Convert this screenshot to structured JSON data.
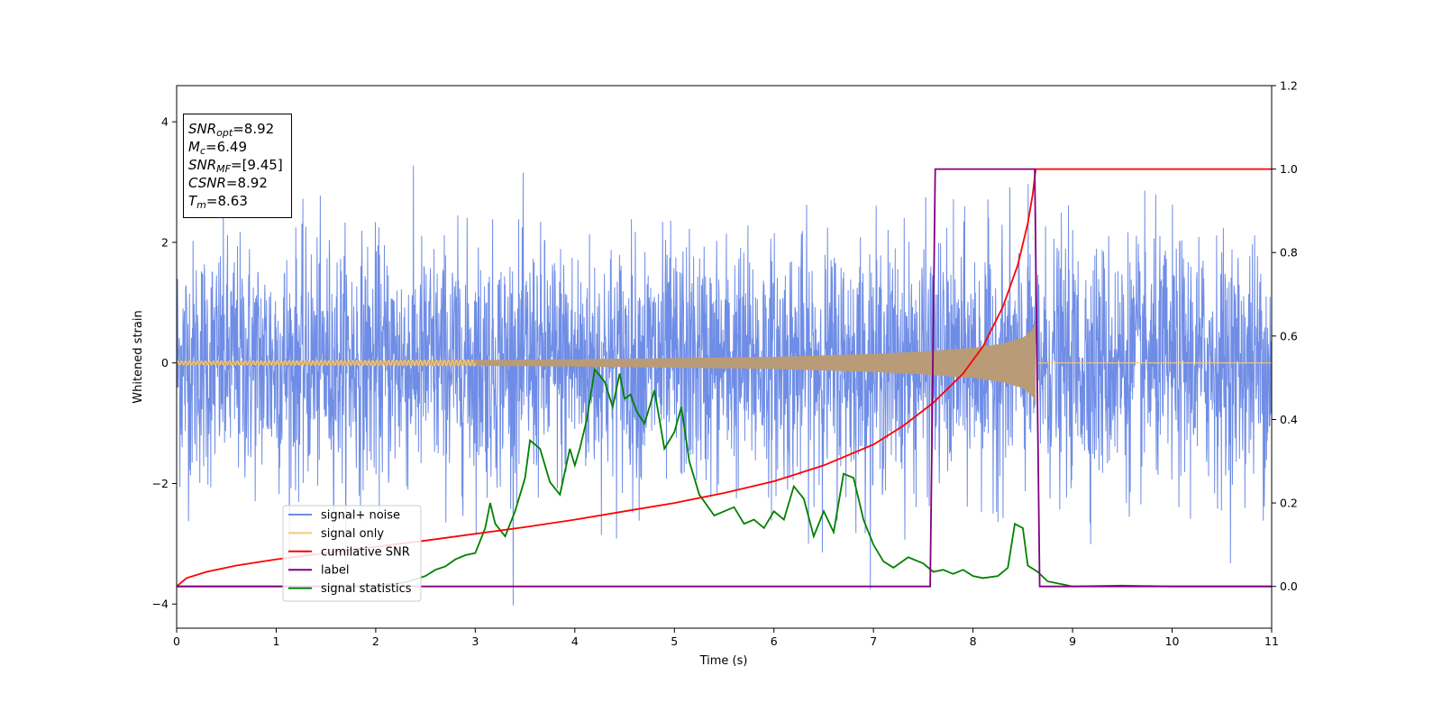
{
  "chart_data": {
    "type": "line",
    "xlabel": "Time (s)",
    "ylabel": "Whitened strain",
    "xlim": [
      0,
      11
    ],
    "ylim": [
      -4.4,
      4.6
    ],
    "y2lim": [
      -0.1,
      1.2
    ],
    "x_ticks": [
      "0",
      "1",
      "2",
      "3",
      "4",
      "5",
      "6",
      "7",
      "8",
      "9",
      "10",
      "11"
    ],
    "y_ticks": [
      "−4",
      "−2",
      "0",
      "2",
      "4"
    ],
    "y2_ticks": [
      "0.0",
      "0.2",
      "0.4",
      "0.6",
      "0.8",
      "1.0",
      "1.2"
    ],
    "legend_position": "lower-left",
    "colors": {
      "signal_noise": "#6f8de6",
      "signal_only": "#f5c97a",
      "overlap": "#b99b78",
      "cumulative_snr": "#ff0000",
      "label": "#800080",
      "signal_statistics": "#008000"
    },
    "annotation": {
      "snr_opt": {
        "symbol": "SNR",
        "sub": "opt",
        "value": "=8.92"
      },
      "mc": {
        "symbol": "M",
        "sub": "c",
        "value": "=6.49"
      },
      "snr_mf": {
        "symbol": "SNR",
        "sub": "MF",
        "value": "=[9.45]"
      },
      "csnr": {
        "symbol": "CSNR",
        "value": "=8.92"
      },
      "tm": {
        "symbol": "T",
        "sub": "m",
        "value": "=8.63"
      }
    },
    "series": [
      {
        "name": "signal+ noise",
        "axis": "left",
        "style": "white noise, std ≈ 1.0, peaks to ≈ ±4.1, spanning t = 0–11 s"
      },
      {
        "name": "signal only",
        "axis": "left",
        "style": "chirp, amplitude rising from ≈ 0.03 to ≈ 0.7, ends at t = 8.63 s, zero afterwards",
        "envelope": [
          [
            0,
            0.03
          ],
          [
            2,
            0.04
          ],
          [
            4,
            0.06
          ],
          [
            6,
            0.1
          ],
          [
            7,
            0.15
          ],
          [
            7.5,
            0.19
          ],
          [
            8,
            0.25
          ],
          [
            8.3,
            0.32
          ],
          [
            8.5,
            0.42
          ],
          [
            8.6,
            0.55
          ],
          [
            8.63,
            0.7
          ]
        ]
      },
      {
        "name": "cumilative SNR",
        "axis": "right",
        "x": [
          0,
          0.1,
          0.3,
          0.6,
          1,
          1.5,
          2,
          2.5,
          3,
          3.5,
          4,
          4.5,
          5,
          5.5,
          6,
          6.5,
          7,
          7.3,
          7.6,
          7.9,
          8.1,
          8.3,
          8.45,
          8.55,
          8.6,
          8.63,
          8.7,
          11
        ],
        "y": [
          0,
          0.02,
          0.035,
          0.05,
          0.065,
          0.08,
          0.095,
          0.11,
          0.126,
          0.142,
          0.16,
          0.18,
          0.2,
          0.224,
          0.252,
          0.29,
          0.34,
          0.385,
          0.44,
          0.51,
          0.575,
          0.67,
          0.77,
          0.87,
          0.94,
          1.0,
          1.0,
          1.0
        ]
      },
      {
        "name": "label",
        "axis": "right",
        "x": [
          0,
          7.57,
          7.62,
          8.62,
          8.67,
          11
        ],
        "y": [
          0,
          0,
          1,
          1,
          0,
          0
        ]
      },
      {
        "name": "signal statistics",
        "axis": "right",
        "x": [
          0,
          1.5,
          2.0,
          2.3,
          2.5,
          2.6,
          2.7,
          2.8,
          2.9,
          3.0,
          3.1,
          3.15,
          3.2,
          3.3,
          3.4,
          3.5,
          3.55,
          3.65,
          3.75,
          3.85,
          3.95,
          4.0,
          4.05,
          4.12,
          4.2,
          4.3,
          4.38,
          4.45,
          4.5,
          4.56,
          4.62,
          4.7,
          4.8,
          4.9,
          5.0,
          5.07,
          5.15,
          5.25,
          5.4,
          5.5,
          5.6,
          5.7,
          5.8,
          5.9,
          6.0,
          6.1,
          6.2,
          6.3,
          6.4,
          6.5,
          6.6,
          6.7,
          6.8,
          6.9,
          7.0,
          7.1,
          7.2,
          7.35,
          7.5,
          7.6,
          7.7,
          7.8,
          7.9,
          8.0,
          8.1,
          8.25,
          8.35,
          8.42,
          8.5,
          8.55,
          8.65,
          8.75,
          8.9,
          9.0,
          9.5,
          10.0,
          11.0
        ],
        "y": [
          0,
          0,
          0.002,
          0.01,
          0.025,
          0.04,
          0.048,
          0.065,
          0.075,
          0.08,
          0.14,
          0.2,
          0.15,
          0.12,
          0.18,
          0.26,
          0.35,
          0.33,
          0.25,
          0.22,
          0.33,
          0.29,
          0.33,
          0.4,
          0.52,
          0.49,
          0.43,
          0.51,
          0.45,
          0.46,
          0.42,
          0.39,
          0.47,
          0.33,
          0.37,
          0.43,
          0.3,
          0.22,
          0.17,
          0.18,
          0.19,
          0.15,
          0.16,
          0.14,
          0.18,
          0.16,
          0.24,
          0.21,
          0.12,
          0.18,
          0.13,
          0.27,
          0.26,
          0.16,
          0.1,
          0.06,
          0.045,
          0.07,
          0.055,
          0.035,
          0.04,
          0.03,
          0.04,
          0.025,
          0.02,
          0.025,
          0.045,
          0.15,
          0.14,
          0.05,
          0.035,
          0.012,
          0.005,
          0.0,
          0.002,
          0.0,
          0.0
        ]
      }
    ]
  }
}
